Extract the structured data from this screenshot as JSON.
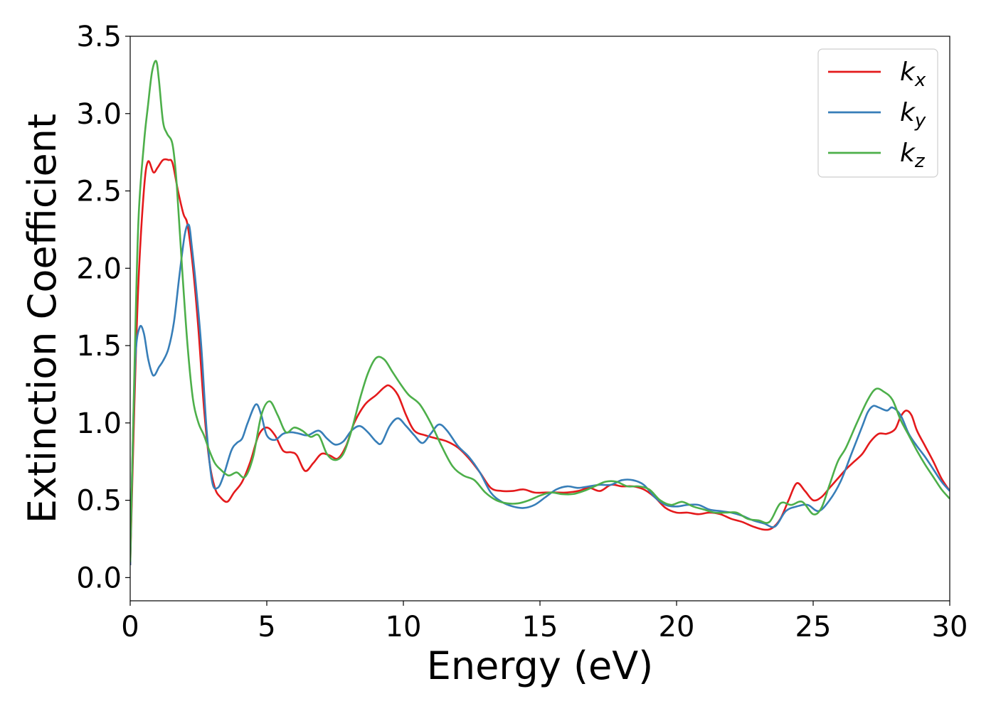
{
  "chart_data": {
    "type": "line",
    "title": "",
    "xlabel": "Energy (eV)",
    "ylabel": "Extinction Coefficient",
    "xlim": [
      0,
      30
    ],
    "ylim": [
      -0.15,
      3.5
    ],
    "xticks": [
      0,
      5,
      10,
      15,
      20,
      25,
      30
    ],
    "yticks": [
      0.0,
      0.5,
      1.0,
      1.5,
      2.0,
      2.5,
      3.0,
      3.5
    ],
    "xtick_labels": [
      "0",
      "5",
      "10",
      "15",
      "20",
      "25",
      "30"
    ],
    "ytick_labels": [
      "0.0",
      "0.5",
      "1.0",
      "1.5",
      "2.0",
      "2.5",
      "3.0",
      "3.5"
    ],
    "grid": false,
    "legend_position": "top-right",
    "series": [
      {
        "name": "kx",
        "legend_base": "k",
        "legend_sub": "x",
        "color": "#e41a1c",
        "x": [
          0,
          0.15,
          0.3,
          0.5,
          0.65,
          0.85,
          1.0,
          1.2,
          1.4,
          1.55,
          1.75,
          1.95,
          2.1,
          2.3,
          2.5,
          2.7,
          2.9,
          3.1,
          3.3,
          3.55,
          3.8,
          4.1,
          4.4,
          4.7,
          5.0,
          5.3,
          5.6,
          5.9,
          6.1,
          6.4,
          6.7,
          7.0,
          7.3,
          7.6,
          7.9,
          8.2,
          8.6,
          9.0,
          9.3,
          9.5,
          9.8,
          10.1,
          10.4,
          10.8,
          11.2,
          11.6,
          12.0,
          12.4,
          12.8,
          13.2,
          13.6,
          14.0,
          14.4,
          14.8,
          15.2,
          15.6,
          16.0,
          16.4,
          16.8,
          17.2,
          17.6,
          18.0,
          18.4,
          18.8,
          19.2,
          19.6,
          20.0,
          20.4,
          20.8,
          21.2,
          21.6,
          22.0,
          22.4,
          22.8,
          23.2,
          23.5,
          23.8,
          24.1,
          24.4,
          24.7,
          25.0,
          25.3,
          25.6,
          25.9,
          26.2,
          26.5,
          26.8,
          27.1,
          27.4,
          27.7,
          28.0,
          28.2,
          28.4,
          28.6,
          28.8,
          29.1,
          29.4,
          29.7,
          30.0
        ],
        "values": [
          0.08,
          1.1,
          1.9,
          2.5,
          2.69,
          2.62,
          2.65,
          2.7,
          2.7,
          2.68,
          2.5,
          2.35,
          2.28,
          2.0,
          1.6,
          1.1,
          0.75,
          0.58,
          0.52,
          0.49,
          0.55,
          0.62,
          0.75,
          0.92,
          0.97,
          0.92,
          0.82,
          0.81,
          0.79,
          0.69,
          0.74,
          0.8,
          0.79,
          0.77,
          0.85,
          1.0,
          1.12,
          1.18,
          1.23,
          1.24,
          1.18,
          1.05,
          0.95,
          0.92,
          0.9,
          0.88,
          0.84,
          0.77,
          0.68,
          0.58,
          0.56,
          0.56,
          0.57,
          0.55,
          0.55,
          0.55,
          0.55,
          0.56,
          0.58,
          0.56,
          0.6,
          0.59,
          0.59,
          0.57,
          0.52,
          0.45,
          0.42,
          0.42,
          0.41,
          0.42,
          0.41,
          0.38,
          0.36,
          0.33,
          0.31,
          0.32,
          0.38,
          0.5,
          0.61,
          0.56,
          0.5,
          0.52,
          0.58,
          0.64,
          0.7,
          0.75,
          0.8,
          0.88,
          0.93,
          0.93,
          0.96,
          1.04,
          1.08,
          1.05,
          0.95,
          0.85,
          0.75,
          0.64,
          0.56
        ]
      },
      {
        "name": "ky",
        "legend_base": "k",
        "legend_sub": "y",
        "color": "#377eb8",
        "x": [
          0,
          0.1,
          0.2,
          0.35,
          0.5,
          0.65,
          0.8,
          0.9,
          1.05,
          1.2,
          1.4,
          1.6,
          1.8,
          2.0,
          2.15,
          2.25,
          2.4,
          2.6,
          2.8,
          3.0,
          3.2,
          3.4,
          3.7,
          3.9,
          4.1,
          4.3,
          4.6,
          4.8,
          5.0,
          5.3,
          5.6,
          5.9,
          6.2,
          6.5,
          6.9,
          7.2,
          7.5,
          7.8,
          8.1,
          8.4,
          8.7,
          9.0,
          9.2,
          9.5,
          9.8,
          10.1,
          10.4,
          10.7,
          11.0,
          11.3,
          11.6,
          12.0,
          12.4,
          12.8,
          13.2,
          13.6,
          14.0,
          14.4,
          14.8,
          15.2,
          15.6,
          16.0,
          16.4,
          16.8,
          17.2,
          17.6,
          18.0,
          18.4,
          18.8,
          19.2,
          19.6,
          20.0,
          20.4,
          20.8,
          21.2,
          21.6,
          22.0,
          22.4,
          22.8,
          23.2,
          23.6,
          24.0,
          24.4,
          24.8,
          25.2,
          25.6,
          26.0,
          26.4,
          26.8,
          27.0,
          27.2,
          27.4,
          27.7,
          27.9,
          28.2,
          28.5,
          28.8,
          29.1,
          29.4,
          29.7,
          30.0
        ],
        "values": [
          0.08,
          0.9,
          1.45,
          1.62,
          1.58,
          1.42,
          1.32,
          1.31,
          1.36,
          1.4,
          1.48,
          1.65,
          1.95,
          2.22,
          2.28,
          2.15,
          1.9,
          1.5,
          0.95,
          0.62,
          0.58,
          0.65,
          0.82,
          0.87,
          0.9,
          1.0,
          1.12,
          1.05,
          0.92,
          0.89,
          0.93,
          0.94,
          0.93,
          0.92,
          0.95,
          0.9,
          0.86,
          0.88,
          0.95,
          0.98,
          0.94,
          0.88,
          0.87,
          0.98,
          1.03,
          0.98,
          0.92,
          0.87,
          0.93,
          0.99,
          0.95,
          0.85,
          0.78,
          0.68,
          0.55,
          0.49,
          0.46,
          0.45,
          0.47,
          0.52,
          0.57,
          0.59,
          0.58,
          0.59,
          0.6,
          0.6,
          0.63,
          0.63,
          0.6,
          0.52,
          0.47,
          0.46,
          0.47,
          0.47,
          0.44,
          0.43,
          0.42,
          0.4,
          0.37,
          0.35,
          0.33,
          0.43,
          0.46,
          0.47,
          0.43,
          0.5,
          0.62,
          0.8,
          0.98,
          1.07,
          1.11,
          1.1,
          1.08,
          1.1,
          1.05,
          0.93,
          0.85,
          0.78,
          0.7,
          0.62,
          0.56
        ]
      },
      {
        "name": "kz",
        "legend_base": "k",
        "legend_sub": "z",
        "color": "#4daf4a",
        "x": [
          0,
          0.15,
          0.3,
          0.5,
          0.65,
          0.8,
          0.95,
          1.05,
          1.2,
          1.35,
          1.55,
          1.7,
          1.9,
          2.1,
          2.3,
          2.5,
          2.7,
          2.9,
          3.1,
          3.3,
          3.6,
          3.9,
          4.2,
          4.5,
          4.8,
          5.1,
          5.4,
          5.7,
          6.0,
          6.3,
          6.6,
          6.9,
          7.2,
          7.5,
          7.8,
          8.1,
          8.4,
          8.7,
          9.0,
          9.3,
          9.6,
          9.9,
          10.2,
          10.6,
          11.0,
          11.4,
          11.8,
          12.2,
          12.6,
          13.0,
          13.4,
          13.8,
          14.2,
          14.6,
          15.0,
          15.4,
          15.8,
          16.2,
          16.6,
          17.0,
          17.4,
          17.8,
          18.2,
          18.6,
          19.0,
          19.4,
          19.8,
          20.2,
          20.6,
          21.0,
          21.4,
          21.8,
          22.2,
          22.6,
          23.0,
          23.4,
          23.8,
          24.2,
          24.6,
          25.0,
          25.3,
          25.6,
          25.9,
          26.2,
          26.6,
          27.0,
          27.3,
          27.6,
          27.9,
          28.2,
          28.5,
          28.8,
          29.1,
          29.4,
          29.7,
          30.0
        ],
        "values": [
          0.1,
          1.3,
          2.3,
          2.8,
          3.05,
          3.27,
          3.34,
          3.22,
          2.95,
          2.87,
          2.8,
          2.55,
          2.0,
          1.5,
          1.15,
          1.0,
          0.92,
          0.82,
          0.74,
          0.7,
          0.66,
          0.68,
          0.65,
          0.78,
          1.05,
          1.14,
          1.05,
          0.94,
          0.97,
          0.95,
          0.91,
          0.92,
          0.8,
          0.76,
          0.8,
          0.95,
          1.15,
          1.32,
          1.42,
          1.41,
          1.33,
          1.25,
          1.18,
          1.12,
          1.0,
          0.85,
          0.72,
          0.66,
          0.63,
          0.55,
          0.5,
          0.48,
          0.48,
          0.5,
          0.53,
          0.55,
          0.54,
          0.54,
          0.56,
          0.59,
          0.62,
          0.62,
          0.59,
          0.59,
          0.57,
          0.5,
          0.47,
          0.49,
          0.46,
          0.44,
          0.42,
          0.42,
          0.42,
          0.38,
          0.37,
          0.36,
          0.48,
          0.47,
          0.49,
          0.41,
          0.45,
          0.6,
          0.75,
          0.84,
          1.0,
          1.15,
          1.22,
          1.2,
          1.15,
          1.02,
          0.92,
          0.82,
          0.73,
          0.65,
          0.57,
          0.51
        ]
      }
    ]
  }
}
